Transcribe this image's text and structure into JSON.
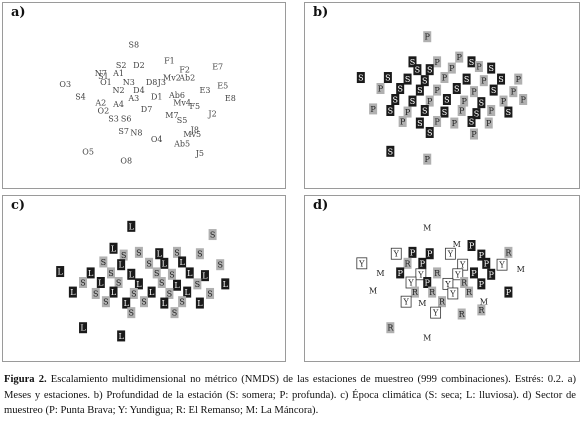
{
  "caption": {
    "label": "Figura 2.",
    "text": "Escalamiento multidimensional no métrico (NMDS) de las estaciones de muestreo (999 combinaciones). Estrés: 0.2. a) Meses y estaciones. b) Profundidad de la estación (S: somera; P: profunda). c) Época climática (S: seca; L: lluviosa). d) Sector de muestreo (P: Punta Brava; Y: Yundigua; R: El Remanso; M: La Máncora)."
  },
  "chart_data": [
    {
      "type": "scatter",
      "panel": "a",
      "label": "a)",
      "marker_style": "text",
      "points": [
        {
          "t": "S8",
          "x": 0.46,
          "y": 0.85
        },
        {
          "t": "F1",
          "x": 0.6,
          "y": 0.75
        },
        {
          "t": "S2",
          "x": 0.41,
          "y": 0.72
        },
        {
          "t": "D2",
          "x": 0.48,
          "y": 0.72
        },
        {
          "t": "E7",
          "x": 0.79,
          "y": 0.71
        },
        {
          "t": "F2",
          "x": 0.66,
          "y": 0.69
        },
        {
          "t": "N7",
          "x": 0.33,
          "y": 0.67
        },
        {
          "t": "A1",
          "x": 0.4,
          "y": 0.67
        },
        {
          "t": "S1",
          "x": 0.34,
          "y": 0.65
        },
        {
          "t": "Mv2",
          "x": 0.61,
          "y": 0.64
        },
        {
          "t": "Ab2",
          "x": 0.67,
          "y": 0.64
        },
        {
          "t": "O3",
          "x": 0.19,
          "y": 0.6
        },
        {
          "t": "O1",
          "x": 0.35,
          "y": 0.61
        },
        {
          "t": "N3",
          "x": 0.44,
          "y": 0.61
        },
        {
          "t": "D8",
          "x": 0.53,
          "y": 0.61
        },
        {
          "t": "J3",
          "x": 0.57,
          "y": 0.61
        },
        {
          "t": "E5",
          "x": 0.81,
          "y": 0.59
        },
        {
          "t": "N2",
          "x": 0.4,
          "y": 0.56
        },
        {
          "t": "D4",
          "x": 0.48,
          "y": 0.56
        },
        {
          "t": "E3",
          "x": 0.74,
          "y": 0.56
        },
        {
          "t": "S4",
          "x": 0.25,
          "y": 0.52
        },
        {
          "t": "A3",
          "x": 0.46,
          "y": 0.51
        },
        {
          "t": "D1",
          "x": 0.55,
          "y": 0.52
        },
        {
          "t": "Ab6",
          "x": 0.63,
          "y": 0.53
        },
        {
          "t": "E8",
          "x": 0.84,
          "y": 0.51
        },
        {
          "t": "A2",
          "x": 0.33,
          "y": 0.48
        },
        {
          "t": "A4",
          "x": 0.4,
          "y": 0.47
        },
        {
          "t": "Mv4",
          "x": 0.65,
          "y": 0.48
        },
        {
          "t": "O2",
          "x": 0.34,
          "y": 0.43
        },
        {
          "t": "D7",
          "x": 0.51,
          "y": 0.44
        },
        {
          "t": "F5",
          "x": 0.7,
          "y": 0.46
        },
        {
          "t": "J2",
          "x": 0.77,
          "y": 0.41
        },
        {
          "t": "S3",
          "x": 0.38,
          "y": 0.38
        },
        {
          "t": "S6",
          "x": 0.43,
          "y": 0.38
        },
        {
          "t": "M7",
          "x": 0.61,
          "y": 0.4
        },
        {
          "t": "S5",
          "x": 0.65,
          "y": 0.37
        },
        {
          "t": "S7",
          "x": 0.42,
          "y": 0.3
        },
        {
          "t": "N8",
          "x": 0.47,
          "y": 0.29
        },
        {
          "t": "J8",
          "x": 0.7,
          "y": 0.31
        },
        {
          "t": "Mv5",
          "x": 0.69,
          "y": 0.28
        },
        {
          "t": "O4",
          "x": 0.55,
          "y": 0.25
        },
        {
          "t": "Ab5",
          "x": 0.65,
          "y": 0.22
        },
        {
          "t": "O5",
          "x": 0.28,
          "y": 0.17
        },
        {
          "t": "J5",
          "x": 0.72,
          "y": 0.16
        },
        {
          "t": "O8",
          "x": 0.43,
          "y": 0.11
        }
      ]
    },
    {
      "type": "scatter",
      "panel": "b",
      "label": "b)",
      "marker_style": "letter-box",
      "legend": {
        "S": "somera",
        "P": "profunda"
      },
      "points": [
        {
          "t": "P",
          "x": 0.44,
          "y": 0.9
        },
        {
          "t": "P",
          "x": 0.57,
          "y": 0.77
        },
        {
          "t": "S",
          "x": 0.38,
          "y": 0.74
        },
        {
          "t": "P",
          "x": 0.48,
          "y": 0.74
        },
        {
          "t": "S",
          "x": 0.62,
          "y": 0.74
        },
        {
          "t": "P",
          "x": 0.65,
          "y": 0.71
        },
        {
          "t": "S",
          "x": 0.4,
          "y": 0.69
        },
        {
          "t": "S",
          "x": 0.45,
          "y": 0.69
        },
        {
          "t": "P",
          "x": 0.54,
          "y": 0.7
        },
        {
          "t": "S",
          "x": 0.7,
          "y": 0.7
        },
        {
          "t": "S",
          "x": 0.17,
          "y": 0.64
        },
        {
          "t": "S",
          "x": 0.28,
          "y": 0.64
        },
        {
          "t": "S",
          "x": 0.36,
          "y": 0.63
        },
        {
          "t": "S",
          "x": 0.43,
          "y": 0.62
        },
        {
          "t": "P",
          "x": 0.51,
          "y": 0.64
        },
        {
          "t": "S",
          "x": 0.6,
          "y": 0.63
        },
        {
          "t": "P",
          "x": 0.67,
          "y": 0.62
        },
        {
          "t": "S",
          "x": 0.74,
          "y": 0.63
        },
        {
          "t": "P",
          "x": 0.81,
          "y": 0.63
        },
        {
          "t": "P",
          "x": 0.25,
          "y": 0.57
        },
        {
          "t": "S",
          "x": 0.33,
          "y": 0.57
        },
        {
          "t": "S",
          "x": 0.41,
          "y": 0.56
        },
        {
          "t": "P",
          "x": 0.48,
          "y": 0.56
        },
        {
          "t": "S",
          "x": 0.56,
          "y": 0.57
        },
        {
          "t": "P",
          "x": 0.63,
          "y": 0.55
        },
        {
          "t": "S",
          "x": 0.71,
          "y": 0.56
        },
        {
          "t": "P",
          "x": 0.79,
          "y": 0.55
        },
        {
          "t": "S",
          "x": 0.31,
          "y": 0.5
        },
        {
          "t": "S",
          "x": 0.38,
          "y": 0.49
        },
        {
          "t": "P",
          "x": 0.45,
          "y": 0.49
        },
        {
          "t": "S",
          "x": 0.52,
          "y": 0.5
        },
        {
          "t": "P",
          "x": 0.59,
          "y": 0.49
        },
        {
          "t": "S",
          "x": 0.66,
          "y": 0.48
        },
        {
          "t": "P",
          "x": 0.75,
          "y": 0.49
        },
        {
          "t": "P",
          "x": 0.83,
          "y": 0.5
        },
        {
          "t": "P",
          "x": 0.22,
          "y": 0.44
        },
        {
          "t": "S",
          "x": 0.29,
          "y": 0.43
        },
        {
          "t": "P",
          "x": 0.36,
          "y": 0.42
        },
        {
          "t": "S",
          "x": 0.43,
          "y": 0.43
        },
        {
          "t": "S",
          "x": 0.51,
          "y": 0.42
        },
        {
          "t": "P",
          "x": 0.58,
          "y": 0.43
        },
        {
          "t": "S",
          "x": 0.64,
          "y": 0.41
        },
        {
          "t": "P",
          "x": 0.7,
          "y": 0.43
        },
        {
          "t": "S",
          "x": 0.77,
          "y": 0.42
        },
        {
          "t": "P",
          "x": 0.34,
          "y": 0.36
        },
        {
          "t": "S",
          "x": 0.41,
          "y": 0.35
        },
        {
          "t": "P",
          "x": 0.48,
          "y": 0.36
        },
        {
          "t": "P",
          "x": 0.55,
          "y": 0.35
        },
        {
          "t": "S",
          "x": 0.62,
          "y": 0.36
        },
        {
          "t": "P",
          "x": 0.69,
          "y": 0.35
        },
        {
          "t": "S",
          "x": 0.45,
          "y": 0.29
        },
        {
          "t": "P",
          "x": 0.63,
          "y": 0.28
        },
        {
          "t": "S",
          "x": 0.29,
          "y": 0.17
        },
        {
          "t": "P",
          "x": 0.44,
          "y": 0.12
        }
      ]
    },
    {
      "type": "scatter",
      "panel": "c",
      "label": "c)",
      "marker_style": "letter-box",
      "legend": {
        "S": "seca",
        "L": "lluviosa"
      },
      "points": [
        {
          "t": "L",
          "x": 0.45,
          "y": 0.91
        },
        {
          "t": "S",
          "x": 0.77,
          "y": 0.85
        },
        {
          "t": "L",
          "x": 0.38,
          "y": 0.75
        },
        {
          "t": "S",
          "x": 0.42,
          "y": 0.7
        },
        {
          "t": "S",
          "x": 0.48,
          "y": 0.72
        },
        {
          "t": "L",
          "x": 0.56,
          "y": 0.71
        },
        {
          "t": "S",
          "x": 0.63,
          "y": 0.72
        },
        {
          "t": "S",
          "x": 0.72,
          "y": 0.71
        },
        {
          "t": "S",
          "x": 0.34,
          "y": 0.65
        },
        {
          "t": "L",
          "x": 0.41,
          "y": 0.63
        },
        {
          "t": "S",
          "x": 0.52,
          "y": 0.64
        },
        {
          "t": "L",
          "x": 0.58,
          "y": 0.64
        },
        {
          "t": "L",
          "x": 0.65,
          "y": 0.65
        },
        {
          "t": "S",
          "x": 0.8,
          "y": 0.63
        },
        {
          "t": "L",
          "x": 0.17,
          "y": 0.58
        },
        {
          "t": "L",
          "x": 0.29,
          "y": 0.57
        },
        {
          "t": "S",
          "x": 0.37,
          "y": 0.57
        },
        {
          "t": "L",
          "x": 0.45,
          "y": 0.56
        },
        {
          "t": "S",
          "x": 0.55,
          "y": 0.57
        },
        {
          "t": "S",
          "x": 0.61,
          "y": 0.56
        },
        {
          "t": "L",
          "x": 0.68,
          "y": 0.57
        },
        {
          "t": "L",
          "x": 0.74,
          "y": 0.55
        },
        {
          "t": "S",
          "x": 0.26,
          "y": 0.5
        },
        {
          "t": "L",
          "x": 0.33,
          "y": 0.5
        },
        {
          "t": "S",
          "x": 0.4,
          "y": 0.5
        },
        {
          "t": "L",
          "x": 0.48,
          "y": 0.49
        },
        {
          "t": "S",
          "x": 0.57,
          "y": 0.5
        },
        {
          "t": "L",
          "x": 0.63,
          "y": 0.48
        },
        {
          "t": "S",
          "x": 0.71,
          "y": 0.49
        },
        {
          "t": "L",
          "x": 0.82,
          "y": 0.49
        },
        {
          "t": "L",
          "x": 0.22,
          "y": 0.43
        },
        {
          "t": "S",
          "x": 0.31,
          "y": 0.42
        },
        {
          "t": "L",
          "x": 0.38,
          "y": 0.43
        },
        {
          "t": "S",
          "x": 0.46,
          "y": 0.42
        },
        {
          "t": "L",
          "x": 0.53,
          "y": 0.43
        },
        {
          "t": "S",
          "x": 0.6,
          "y": 0.42
        },
        {
          "t": "L",
          "x": 0.67,
          "y": 0.43
        },
        {
          "t": "S",
          "x": 0.76,
          "y": 0.42
        },
        {
          "t": "S",
          "x": 0.35,
          "y": 0.36
        },
        {
          "t": "L",
          "x": 0.43,
          "y": 0.35
        },
        {
          "t": "S",
          "x": 0.5,
          "y": 0.36
        },
        {
          "t": "L",
          "x": 0.58,
          "y": 0.35
        },
        {
          "t": "S",
          "x": 0.65,
          "y": 0.36
        },
        {
          "t": "L",
          "x": 0.72,
          "y": 0.35
        },
        {
          "t": "S",
          "x": 0.45,
          "y": 0.28
        },
        {
          "t": "S",
          "x": 0.62,
          "y": 0.28
        },
        {
          "t": "L",
          "x": 0.26,
          "y": 0.17
        },
        {
          "t": "L",
          "x": 0.41,
          "y": 0.11
        }
      ]
    },
    {
      "type": "scatter",
      "panel": "d",
      "label": "d)",
      "marker_style": "letter-box",
      "legend": {
        "P": "Punta Brava",
        "Y": "Yundigua",
        "R": "El Remanso",
        "M": "La Máncora"
      },
      "points": [
        {
          "t": "M",
          "x": 0.44,
          "y": 0.9
        },
        {
          "t": "M",
          "x": 0.56,
          "y": 0.78
        },
        {
          "t": "P",
          "x": 0.62,
          "y": 0.77
        },
        {
          "t": "Y",
          "x": 0.31,
          "y": 0.71
        },
        {
          "t": "P",
          "x": 0.38,
          "y": 0.72
        },
        {
          "t": "P",
          "x": 0.45,
          "y": 0.71
        },
        {
          "t": "Y",
          "x": 0.53,
          "y": 0.71
        },
        {
          "t": "P",
          "x": 0.66,
          "y": 0.7
        },
        {
          "t": "R",
          "x": 0.77,
          "y": 0.72
        },
        {
          "t": "Y",
          "x": 0.17,
          "y": 0.64
        },
        {
          "t": "R",
          "x": 0.36,
          "y": 0.64
        },
        {
          "t": "P",
          "x": 0.42,
          "y": 0.64
        },
        {
          "t": "Y",
          "x": 0.58,
          "y": 0.63
        },
        {
          "t": "P",
          "x": 0.68,
          "y": 0.64
        },
        {
          "t": "Y",
          "x": 0.74,
          "y": 0.63
        },
        {
          "t": "M",
          "x": 0.82,
          "y": 0.6
        },
        {
          "t": "M",
          "x": 0.25,
          "y": 0.57
        },
        {
          "t": "P",
          "x": 0.33,
          "y": 0.57
        },
        {
          "t": "Y",
          "x": 0.41,
          "y": 0.56
        },
        {
          "t": "R",
          "x": 0.48,
          "y": 0.57
        },
        {
          "t": "Y",
          "x": 0.56,
          "y": 0.56
        },
        {
          "t": "P",
          "x": 0.63,
          "y": 0.57
        },
        {
          "t": "P",
          "x": 0.7,
          "y": 0.56
        },
        {
          "t": "Y",
          "x": 0.37,
          "y": 0.5
        },
        {
          "t": "P",
          "x": 0.44,
          "y": 0.5
        },
        {
          "t": "Y",
          "x": 0.52,
          "y": 0.49
        },
        {
          "t": "R",
          "x": 0.59,
          "y": 0.5
        },
        {
          "t": "P",
          "x": 0.66,
          "y": 0.49
        },
        {
          "t": "M",
          "x": 0.22,
          "y": 0.44
        },
        {
          "t": "R",
          "x": 0.39,
          "y": 0.43
        },
        {
          "t": "R",
          "x": 0.46,
          "y": 0.43
        },
        {
          "t": "Y",
          "x": 0.54,
          "y": 0.42
        },
        {
          "t": "R",
          "x": 0.61,
          "y": 0.43
        },
        {
          "t": "P",
          "x": 0.77,
          "y": 0.43
        },
        {
          "t": "Y",
          "x": 0.35,
          "y": 0.36
        },
        {
          "t": "M",
          "x": 0.42,
          "y": 0.35
        },
        {
          "t": "R",
          "x": 0.5,
          "y": 0.36
        },
        {
          "t": "M",
          "x": 0.67,
          "y": 0.36
        },
        {
          "t": "Y",
          "x": 0.47,
          "y": 0.28
        },
        {
          "t": "R",
          "x": 0.58,
          "y": 0.27
        },
        {
          "t": "R",
          "x": 0.66,
          "y": 0.3
        },
        {
          "t": "R",
          "x": 0.29,
          "y": 0.17
        },
        {
          "t": "M",
          "x": 0.44,
          "y": 0.1
        }
      ]
    }
  ],
  "styles": {
    "dark_box": "#1a1a1a",
    "gray_box": "#b0b0b0",
    "text_gray": "#444444"
  }
}
